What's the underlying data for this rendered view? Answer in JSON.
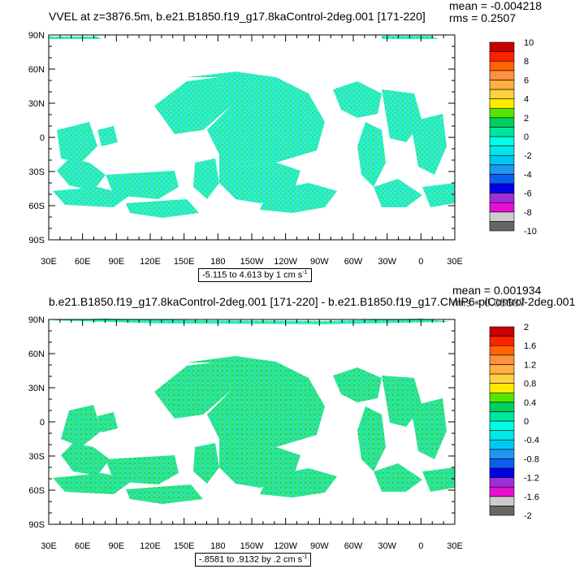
{
  "colors": {
    "land": "#ffffff",
    "ocean_fill": "#33eec6",
    "ocean_speckle": [
      "#00e5e5",
      "#33dd77",
      "#66ee66"
    ]
  },
  "colorbar": {
    "colors": [
      "#666666",
      "#cccccc",
      "#e60fd2",
      "#9c2fd7",
      "#0000e6",
      "#0a5ff0",
      "#1f96f0",
      "#00c8f0",
      "#00e8e8",
      "#00ffe6",
      "#00e6a0",
      "#00d060",
      "#55e600",
      "#ffeb00",
      "#ffd040",
      "#ffb040",
      "#ff9040",
      "#ff6400",
      "#ff2200",
      "#c80000"
    ]
  },
  "panels": [
    {
      "title": "VVEL at z=3876.5m, b.e21.B1850.f19_g17.8kaControl-2deg.001 [171-220]",
      "mean": "mean = -0.004218",
      "rms": "rms = 0.2507",
      "range": "-5.115 to 4.613 by 1 cm s",
      "range_unit_exp": "-1",
      "colorbar_labels": [
        "10",
        "8",
        "6",
        "4",
        "2",
        "0",
        "-2",
        "-4",
        "-6",
        "-8",
        "-10"
      ]
    },
    {
      "title": "b.e21.B1850.f19_g17.8kaControl-2deg.001 [171-220] - b.e21.B1850.f19_g17.CMIP6-piControl-2deg.001",
      "mean": "mean = 0.001934",
      "rms": "rms = 0.05587",
      "range": "-.8581 to .9132 by .2 cm s",
      "range_unit_exp": "-1",
      "colorbar_labels": [
        "2",
        "1.6",
        "1.2",
        "0.8",
        "0.4",
        "0",
        "-0.4",
        "-0.8",
        "-1.2",
        "-1.6",
        "-2"
      ]
    }
  ],
  "axes": {
    "lat_labels": [
      "90N",
      "60N",
      "30N",
      "0",
      "30S",
      "60S",
      "90S"
    ],
    "lon_labels": [
      "30E",
      "60E",
      "90E",
      "120E",
      "150E",
      "180",
      "150W",
      "120W",
      "90W",
      "60W",
      "30W",
      "0",
      "30E"
    ]
  }
}
